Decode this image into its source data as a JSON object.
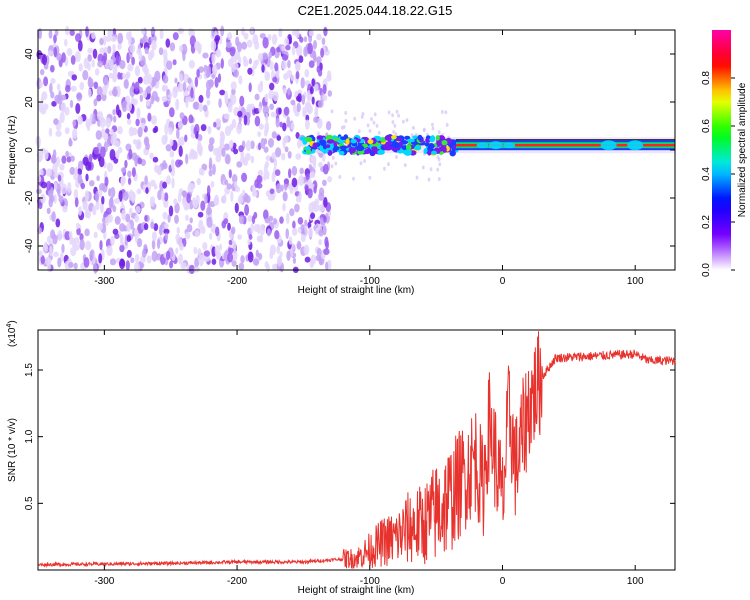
{
  "title": "C2E1.2025.044.18.22.G15",
  "chart_data": [
    {
      "type": "heatmap",
      "xlabel": "Height of straight line (km)",
      "ylabel": "Frequency (Hz)",
      "xlim": [
        -350,
        130
      ],
      "ylim": [
        -50,
        50
      ],
      "xticks": [
        -300,
        -200,
        -100,
        0,
        100
      ],
      "yticks": [
        -40,
        -20,
        0,
        20,
        40
      ],
      "colorbar": {
        "label": "Normalized spectral amplitude",
        "range": [
          0,
          1
        ],
        "ticks": [
          "0.0",
          "0.2",
          "0.4",
          "0.6",
          "0.8"
        ],
        "colormap": [
          "#ffffff",
          "#7a00ff",
          "#0000ff",
          "#00e5ff",
          "#00ff00",
          "#ffff00",
          "#ff0000",
          "#ff00aa"
        ]
      },
      "features": {
        "scatter_region_x": [
          -350,
          -130
        ],
        "signal_line_start_x": -150,
        "signal_line_freq_hz": 2
      }
    },
    {
      "type": "line",
      "xlabel": "Height of straight line (km)",
      "ylabel": "SNR (10 * v/v)",
      "y_exponent_label": "(x10",
      "y_exponent": "4",
      "y_exponent_close": ")",
      "xlim": [
        -350,
        130
      ],
      "ylim": [
        0,
        18000
      ],
      "xticks": [
        -300,
        -200,
        -100,
        0,
        100
      ],
      "yticks": [
        5000,
        10000,
        15000
      ],
      "ytick_labels": [
        "0.5",
        "1.0",
        "1.5"
      ],
      "color": "#e8322d",
      "series": [
        {
          "x": [
            -350,
            -250,
            -200,
            -150,
            -110,
            -100,
            -90,
            -80,
            -70,
            -60,
            -50,
            -40,
            -30,
            -20,
            -15,
            -10,
            -5,
            0,
            5,
            10,
            20,
            30,
            40,
            60,
            80,
            100,
            110,
            130
          ],
          "y": [
            400,
            500,
            600,
            600,
            900,
            1500,
            2100,
            2400,
            3200,
            3400,
            4300,
            5300,
            6800,
            8500,
            6000,
            11000,
            8200,
            5000,
            12000,
            7600,
            12400,
            14500,
            15900,
            16000,
            16100,
            16200,
            15700,
            15700
          ]
        }
      ]
    }
  ]
}
